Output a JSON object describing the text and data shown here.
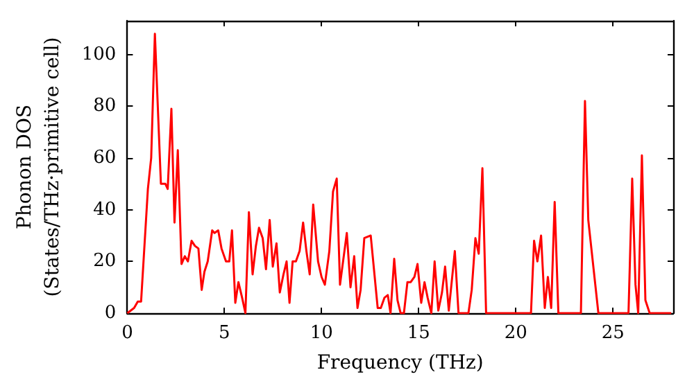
{
  "chart_data": {
    "type": "line",
    "xlabel": "Frequency (THz)",
    "ylabel": "Phonon DOS\n(States/THz·primitive cell)",
    "xlim": [
      0,
      28.1
    ],
    "xticks": [
      0,
      5,
      10,
      15,
      20,
      25
    ],
    "ylim": [
      0,
      113
    ],
    "yticks": [
      0,
      20,
      40,
      60,
      80,
      100
    ],
    "marker": "none",
    "line_style": "solid",
    "series": [
      {
        "color": "#ff0000",
        "x": [
          0,
          0.35,
          0.54,
          0.71,
          1.06,
          1.23,
          1.42,
          1.73,
          1.96,
          2.08,
          2.27,
          2.43,
          2.6,
          2.79,
          2.96,
          3.12,
          3.31,
          3.48,
          3.66,
          3.83,
          3.97,
          4.14,
          4.37,
          4.49,
          4.68,
          4.85,
          5.08,
          5.25,
          5.39,
          5.56,
          5.72,
          5.91,
          6.08,
          6.26,
          6.45,
          6.62,
          6.78,
          6.97,
          7.14,
          7.33,
          7.49,
          7.68,
          7.85,
          8.04,
          8.2,
          8.35,
          8.51,
          8.68,
          8.87,
          9.05,
          9.22,
          9.39,
          9.57,
          9.82,
          10.0,
          10.17,
          10.4,
          10.59,
          10.78,
          10.95,
          11.3,
          11.49,
          11.68,
          11.85,
          12.01,
          12.2,
          12.53,
          12.89,
          13.05,
          13.24,
          13.41,
          13.55,
          13.74,
          13.91,
          14.07,
          14.24,
          14.42,
          14.59,
          14.78,
          14.94,
          15.13,
          15.3,
          15.46,
          15.65,
          15.82,
          16.01,
          16.2,
          16.36,
          16.55,
          16.86,
          17.05,
          17.56,
          17.73,
          17.92,
          18.09,
          18.28,
          18.47,
          20.78,
          20.94,
          21.11,
          21.3,
          21.49,
          21.65,
          21.82,
          22.0,
          22.19,
          23.35,
          23.56,
          23.73,
          24.25,
          25.8,
          25.99,
          26.16,
          26.3,
          26.49,
          26.67,
          26.89,
          28.0
        ],
        "values": [
          0,
          2,
          4.5,
          4.5,
          48,
          60,
          108,
          50,
          50,
          48,
          79,
          35,
          63,
          19,
          22,
          20,
          28,
          26,
          25,
          9,
          16,
          20,
          32,
          31,
          32,
          25,
          20,
          20,
          32,
          4,
          12,
          6,
          0,
          39,
          15,
          26,
          33,
          29,
          17,
          36,
          18,
          27,
          8,
          15,
          20,
          4,
          20,
          20,
          24,
          35,
          24,
          15,
          42,
          20,
          14,
          11,
          24,
          47,
          52,
          11,
          31,
          10,
          22,
          2,
          9,
          29,
          30,
          2,
          2,
          6,
          7,
          0,
          21,
          5,
          0,
          0,
          12,
          12,
          14,
          19,
          4,
          12,
          6,
          0,
          20,
          1,
          8,
          18,
          1,
          24,
          0,
          0,
          9,
          29,
          23,
          56,
          0,
          0,
          28,
          20,
          30,
          2,
          14,
          2,
          43,
          0,
          0,
          82,
          36,
          0,
          0,
          52,
          11,
          0,
          61,
          5,
          0,
          0
        ]
      }
    ]
  }
}
